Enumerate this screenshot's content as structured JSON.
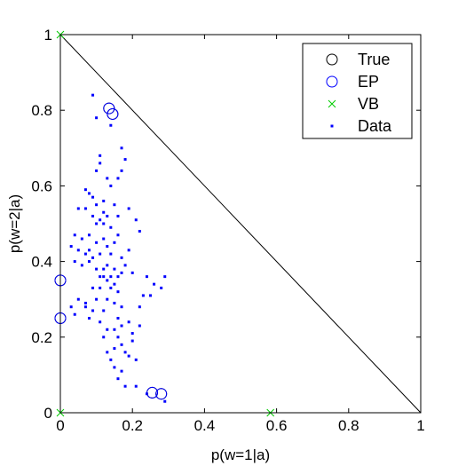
{
  "chart_data": {
    "type": "scatter",
    "xlabel": "p(w=1|a)",
    "ylabel": "p(w=2|a)",
    "xlim": [
      0,
      1
    ],
    "ylim": [
      0,
      1
    ],
    "x_ticks": [
      "0",
      "0.2",
      "0.4",
      "0.6",
      "0.8",
      "1"
    ],
    "y_ticks": [
      "0",
      "0.2",
      "0.4",
      "0.6",
      "0.8",
      "1"
    ],
    "grid": false,
    "legend_position": "top-right",
    "simplex_boundary": {
      "x": [
        0,
        1
      ],
      "y": [
        1,
        0
      ],
      "color": "#000000"
    },
    "series": [
      {
        "name": "True",
        "marker": "circle",
        "color": "#000000",
        "points": [
          [
            0.135,
            0.805
          ],
          [
            0.145,
            0.79
          ],
          [
            0.255,
            0.053
          ],
          [
            0.28,
            0.05
          ],
          [
            0.0,
            0.35
          ],
          [
            0.0,
            0.25
          ]
        ]
      },
      {
        "name": "EP",
        "marker": "circle",
        "color": "#0000ff",
        "points": [
          [
            0.135,
            0.805
          ],
          [
            0.145,
            0.79
          ],
          [
            0.255,
            0.053
          ],
          [
            0.28,
            0.05
          ],
          [
            0.0,
            0.35
          ],
          [
            0.0,
            0.25
          ]
        ]
      },
      {
        "name": "VB",
        "marker": "x",
        "color": "#00cc00",
        "points": [
          [
            0.0,
            1.0
          ],
          [
            0.0,
            0.0
          ],
          [
            0.583,
            0.0
          ]
        ]
      },
      {
        "name": "Data",
        "marker": "dot",
        "color": "#0000ff",
        "points": [
          [
            0.09,
            0.84
          ],
          [
            0.1,
            0.78
          ],
          [
            0.14,
            0.76
          ],
          [
            0.17,
            0.7
          ],
          [
            0.18,
            0.67
          ],
          [
            0.11,
            0.68
          ],
          [
            0.11,
            0.66
          ],
          [
            0.1,
            0.64
          ],
          [
            0.13,
            0.62
          ],
          [
            0.14,
            0.6
          ],
          [
            0.16,
            0.62
          ],
          [
            0.17,
            0.64
          ],
          [
            0.07,
            0.59
          ],
          [
            0.08,
            0.58
          ],
          [
            0.09,
            0.57
          ],
          [
            0.1,
            0.55
          ],
          [
            0.12,
            0.56
          ],
          [
            0.12,
            0.53
          ],
          [
            0.13,
            0.52
          ],
          [
            0.15,
            0.55
          ],
          [
            0.05,
            0.54
          ],
          [
            0.07,
            0.54
          ],
          [
            0.09,
            0.52
          ],
          [
            0.1,
            0.5
          ],
          [
            0.11,
            0.51
          ],
          [
            0.12,
            0.5
          ],
          [
            0.14,
            0.49
          ],
          [
            0.16,
            0.52
          ],
          [
            0.19,
            0.54
          ],
          [
            0.21,
            0.51
          ],
          [
            0.04,
            0.47
          ],
          [
            0.06,
            0.46
          ],
          [
            0.08,
            0.47
          ],
          [
            0.1,
            0.45
          ],
          [
            0.12,
            0.46
          ],
          [
            0.13,
            0.44
          ],
          [
            0.15,
            0.45
          ],
          [
            0.16,
            0.47
          ],
          [
            0.22,
            0.48
          ],
          [
            0.03,
            0.44
          ],
          [
            0.05,
            0.43
          ],
          [
            0.07,
            0.42
          ],
          [
            0.08,
            0.43
          ],
          [
            0.09,
            0.41
          ],
          [
            0.11,
            0.42
          ],
          [
            0.14,
            0.42
          ],
          [
            0.17,
            0.41
          ],
          [
            0.19,
            0.43
          ],
          [
            0.04,
            0.4
          ],
          [
            0.06,
            0.39
          ],
          [
            0.08,
            0.4
          ],
          [
            0.1,
            0.38
          ],
          [
            0.12,
            0.38
          ],
          [
            0.13,
            0.39
          ],
          [
            0.15,
            0.38
          ],
          [
            0.17,
            0.37
          ],
          [
            0.18,
            0.39
          ],
          [
            0.2,
            0.37
          ],
          [
            0.24,
            0.36
          ],
          [
            0.26,
            0.34
          ],
          [
            0.29,
            0.36
          ],
          [
            0.28,
            0.33
          ],
          [
            0.11,
            0.36
          ],
          [
            0.12,
            0.36
          ],
          [
            0.13,
            0.35
          ],
          [
            0.14,
            0.36
          ],
          [
            0.15,
            0.34
          ],
          [
            0.16,
            0.36
          ],
          [
            0.09,
            0.33
          ],
          [
            0.11,
            0.33
          ],
          [
            0.14,
            0.33
          ],
          [
            0.16,
            0.32
          ],
          [
            0.23,
            0.31
          ],
          [
            0.25,
            0.31
          ],
          [
            0.05,
            0.3
          ],
          [
            0.1,
            0.3
          ],
          [
            0.13,
            0.3
          ],
          [
            0.15,
            0.29
          ],
          [
            0.07,
            0.29
          ],
          [
            0.07,
            0.28
          ],
          [
            0.09,
            0.27
          ],
          [
            0.12,
            0.27
          ],
          [
            0.17,
            0.28
          ],
          [
            0.22,
            0.28
          ],
          [
            0.03,
            0.28
          ],
          [
            0.04,
            0.26
          ],
          [
            0.08,
            0.25
          ],
          [
            0.11,
            0.24
          ],
          [
            0.16,
            0.25
          ],
          [
            0.17,
            0.23
          ],
          [
            0.19,
            0.24
          ],
          [
            0.13,
            0.22
          ],
          [
            0.15,
            0.22
          ],
          [
            0.22,
            0.23
          ],
          [
            0.2,
            0.21
          ],
          [
            0.12,
            0.2
          ],
          [
            0.16,
            0.2
          ],
          [
            0.17,
            0.18
          ],
          [
            0.15,
            0.17
          ],
          [
            0.18,
            0.16
          ],
          [
            0.19,
            0.15
          ],
          [
            0.13,
            0.16
          ],
          [
            0.14,
            0.14
          ],
          [
            0.21,
            0.14
          ],
          [
            0.15,
            0.12
          ],
          [
            0.17,
            0.11
          ],
          [
            0.16,
            0.09
          ],
          [
            0.18,
            0.07
          ],
          [
            0.21,
            0.07
          ],
          [
            0.24,
            0.05
          ],
          [
            0.29,
            0.03
          ],
          [
            0.2,
            0.19
          ]
        ]
      }
    ]
  }
}
